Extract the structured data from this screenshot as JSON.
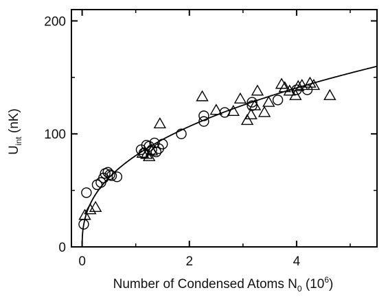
{
  "chart_data": {
    "type": "scatter",
    "xlabel": {
      "main": "Number of Condensed Atoms N",
      "sub": "0",
      "unit_prefix": " (10",
      "unit_sup": "6",
      "unit_suffix": ")"
    },
    "ylabel": {
      "main": "U",
      "sub": "int",
      "unit": " (nK)"
    },
    "xlim": [
      -0.2,
      5.5
    ],
    "ylim": [
      0,
      210
    ],
    "x_ticks": [
      0,
      2,
      4
    ],
    "x_tick_labels": [
      "0",
      "2",
      "4"
    ],
    "y_ticks": [
      0,
      100,
      200
    ],
    "y_tick_labels": [
      "0",
      "100",
      "200"
    ],
    "grid": false,
    "series": [
      {
        "marker": "circle",
        "points": [
          [
            0.03,
            20
          ],
          [
            0.08,
            48
          ],
          [
            0.28,
            55
          ],
          [
            0.35,
            57
          ],
          [
            0.4,
            61
          ],
          [
            0.43,
            65
          ],
          [
            0.48,
            66
          ],
          [
            0.52,
            64
          ],
          [
            0.55,
            63
          ],
          [
            0.65,
            62
          ],
          [
            1.1,
            86
          ],
          [
            1.15,
            83
          ],
          [
            1.2,
            90
          ],
          [
            1.25,
            89
          ],
          [
            1.3,
            86
          ],
          [
            1.35,
            92
          ],
          [
            1.38,
            84
          ],
          [
            1.43,
            87
          ],
          [
            1.5,
            91
          ],
          [
            1.85,
            100
          ],
          [
            2.27,
            116
          ],
          [
            2.27,
            111
          ],
          [
            2.66,
            119
          ],
          [
            3.17,
            128
          ],
          [
            3.17,
            125
          ],
          [
            3.65,
            130
          ],
          [
            4.0,
            139
          ],
          [
            4.2,
            139
          ]
        ]
      },
      {
        "marker": "triangle",
        "points": [
          [
            0.05,
            28
          ],
          [
            0.15,
            33
          ],
          [
            0.25,
            35
          ],
          [
            1.13,
            83
          ],
          [
            1.2,
            82
          ],
          [
            1.25,
            80
          ],
          [
            1.3,
            85
          ],
          [
            1.45,
            109
          ],
          [
            2.24,
            133
          ],
          [
            2.5,
            121
          ],
          [
            2.82,
            120
          ],
          [
            2.95,
            131
          ],
          [
            3.08,
            112
          ],
          [
            3.15,
            117
          ],
          [
            3.22,
            125
          ],
          [
            3.27,
            138
          ],
          [
            3.4,
            119
          ],
          [
            3.48,
            128
          ],
          [
            3.72,
            144
          ],
          [
            3.78,
            141
          ],
          [
            3.87,
            138
          ],
          [
            3.98,
            134
          ],
          [
            4.03,
            142
          ],
          [
            4.1,
            143
          ],
          [
            4.25,
            145
          ],
          [
            4.32,
            143
          ],
          [
            4.62,
            134
          ]
        ]
      }
    ],
    "fit_curve": {
      "form": "a*x^0.4",
      "a": 80.8
    }
  }
}
